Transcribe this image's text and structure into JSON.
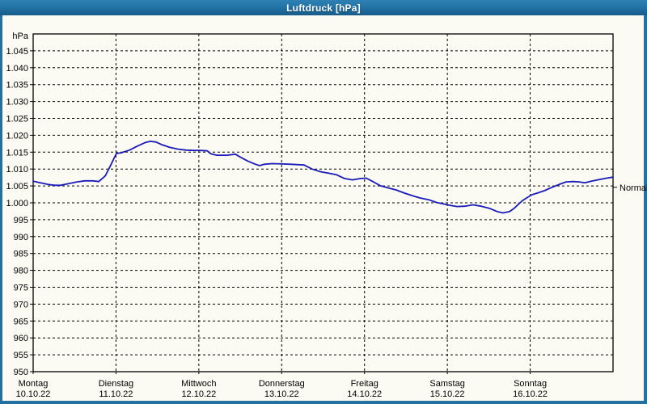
{
  "window": {
    "title": "Luftdruck [hPa]"
  },
  "colors": {
    "frame": "#2470a0",
    "titlebar_top": "#2f81b4",
    "titlebar_bottom": "#185c89",
    "title_text": "#ffffff",
    "content_bg": "#fbfbf3",
    "grid": "#000000",
    "axis": "#000000",
    "tick_text": "#000000",
    "line": "#1a1ab8"
  },
  "chart_data": {
    "type": "line",
    "title": "Luftdruck [hPa]",
    "y_unit_label": "hPa",
    "ylim": [
      950,
      1050
    ],
    "y_tick_min": 950,
    "y_tick_max": 1045,
    "y_tick_step": 5,
    "grid": "dashed",
    "x_total_hours": 168,
    "x_days": [
      {
        "name": "Montag",
        "date": "10.10.22"
      },
      {
        "name": "Dienstag",
        "date": "11.10.22"
      },
      {
        "name": "Mittwoch",
        "date": "12.10.22"
      },
      {
        "name": "Donnerstag",
        "date": "13.10.22"
      },
      {
        "name": "Freitag",
        "date": "14.10.22"
      },
      {
        "name": "Samstag",
        "date": "15.10.22"
      },
      {
        "name": "Sonntag",
        "date": "16.10.22"
      }
    ],
    "normal_marker": {
      "label": "Normal",
      "value": 1004.6
    },
    "legend_position": "right-edge",
    "series": [
      {
        "name": "Luftdruck",
        "unit": "hPa",
        "color": "#1a1ab8",
        "points": [
          [
            0,
            1006.4
          ],
          [
            2.1,
            1005.9
          ],
          [
            4.5,
            1005.4
          ],
          [
            6.3,
            1005.2
          ],
          [
            8,
            1005.2
          ],
          [
            10.3,
            1005.7
          ],
          [
            12.7,
            1006.2
          ],
          [
            15,
            1006.5
          ],
          [
            17.3,
            1006.5
          ],
          [
            19,
            1006.3
          ],
          [
            20.9,
            1008
          ],
          [
            22.5,
            1011.2
          ],
          [
            24.1,
            1014.6
          ],
          [
            25.5,
            1014.8
          ],
          [
            27.9,
            1015.6
          ],
          [
            30.2,
            1016.8
          ],
          [
            32.6,
            1017.9
          ],
          [
            34,
            1018.2
          ],
          [
            35.6,
            1018
          ],
          [
            37.3,
            1017.2
          ],
          [
            39.6,
            1016.4
          ],
          [
            41.9,
            1015.9
          ],
          [
            44.3,
            1015.6
          ],
          [
            46.6,
            1015.5
          ],
          [
            48.3,
            1015.5
          ],
          [
            50.4,
            1015.4
          ],
          [
            51.5,
            1014.5
          ],
          [
            53.2,
            1014.1
          ],
          [
            56.2,
            1014.1
          ],
          [
            58.6,
            1014.4
          ],
          [
            59.7,
            1013.7
          ],
          [
            62.1,
            1012.4
          ],
          [
            64.4,
            1011.4
          ],
          [
            65.6,
            1011
          ],
          [
            67,
            1011.4
          ],
          [
            69.1,
            1011.6
          ],
          [
            72.2,
            1011.5
          ],
          [
            74.7,
            1011.4
          ],
          [
            78.5,
            1011.2
          ],
          [
            80.8,
            1010
          ],
          [
            83.2,
            1009.2
          ],
          [
            85.5,
            1008.8
          ],
          [
            87.9,
            1008.3
          ],
          [
            90.2,
            1007.2
          ],
          [
            92.5,
            1006.8
          ],
          [
            94.9,
            1007.2
          ],
          [
            96.5,
            1007.3
          ],
          [
            98.6,
            1006.2
          ],
          [
            100.5,
            1005.1
          ],
          [
            102.9,
            1004.4
          ],
          [
            105.2,
            1003.8
          ],
          [
            107.5,
            1002.9
          ],
          [
            109.9,
            1002.1
          ],
          [
            112.2,
            1001.4
          ],
          [
            114.6,
            1000.9
          ],
          [
            116.9,
            1000.1
          ],
          [
            119.3,
            999.6
          ],
          [
            120.4,
            999.3
          ],
          [
            122.8,
            998.9
          ],
          [
            125.1,
            999
          ],
          [
            127.4,
            999.4
          ],
          [
            129.8,
            999
          ],
          [
            132.1,
            998.4
          ],
          [
            134.5,
            997.4
          ],
          [
            136.1,
            997
          ],
          [
            138,
            997.4
          ],
          [
            139.4,
            998.4
          ],
          [
            140.6,
            999.6
          ],
          [
            141.7,
            1000.6
          ],
          [
            142.9,
            1001.4
          ],
          [
            144.5,
            1002.4
          ],
          [
            146.4,
            1003
          ],
          [
            148.1,
            1003.6
          ],
          [
            149.9,
            1004.4
          ],
          [
            152.3,
            1005.4
          ],
          [
            154.4,
            1006.2
          ],
          [
            156.5,
            1006.3
          ],
          [
            158.2,
            1006.2
          ],
          [
            159.8,
            1005.9
          ],
          [
            161.7,
            1006.4
          ],
          [
            164,
            1006.9
          ],
          [
            166.1,
            1007.3
          ],
          [
            168,
            1007.6
          ]
        ]
      }
    ]
  }
}
